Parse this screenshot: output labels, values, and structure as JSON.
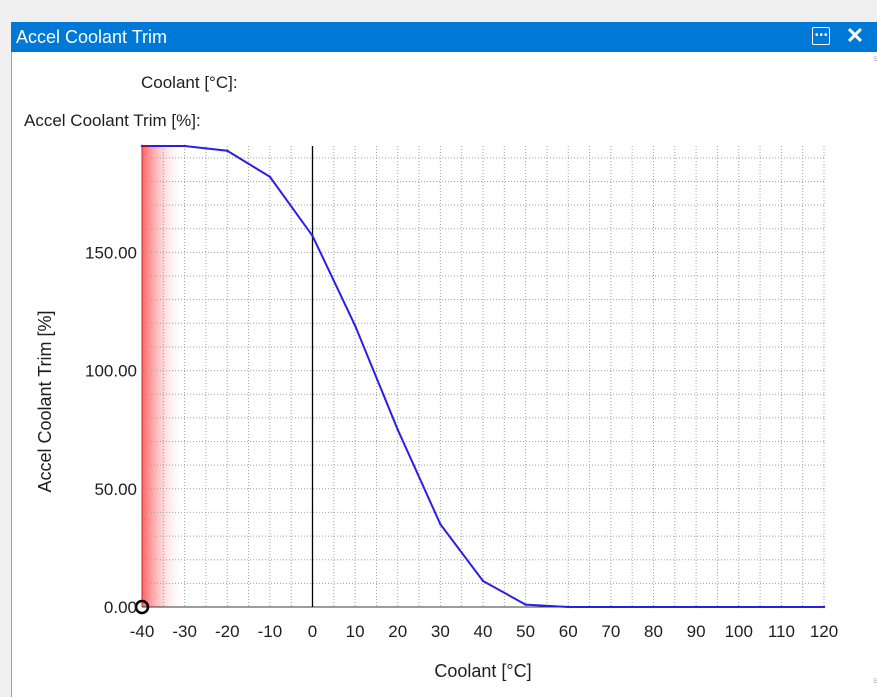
{
  "window": {
    "title": "Accel Coolant Trim"
  },
  "cursor_readout": {
    "x_label": "Coolant [°C]:",
    "y_label": "Accel Coolant Trim [%]:"
  },
  "colors": {
    "titlebar": "#0078d7",
    "curve": "#2b1fe6",
    "highlight": "#ff6b6b",
    "grid": "#a0a0a0"
  },
  "chart_data": {
    "type": "line",
    "xlabel": "Coolant [°C]",
    "ylabel": "Accel Coolant Trim [%]",
    "xlim": [
      -40,
      120
    ],
    "ylim": [
      0,
      195
    ],
    "x_ticks": [
      "-40",
      "-30",
      "-20",
      "-10",
      "0",
      "10",
      "20",
      "30",
      "40",
      "50",
      "60",
      "70",
      "80",
      "90",
      "100",
      "110",
      "120"
    ],
    "y_ticks": [
      {
        "value": 0,
        "label": "0.00"
      },
      {
        "value": 50,
        "label": "50.00"
      },
      {
        "value": 100,
        "label": "100.00"
      },
      {
        "value": 150,
        "label": "150.00"
      }
    ],
    "grid": true,
    "zero_line_x": 0,
    "highlighted_range": [
      -40,
      -30
    ],
    "selected_point": {
      "x": -40,
      "y": 0
    },
    "series": [
      {
        "x": [
          -40,
          -30,
          -20,
          -10,
          0,
          10,
          20,
          30,
          40,
          50,
          60,
          70,
          80,
          90,
          100,
          110,
          120
        ],
        "values": [
          195,
          195,
          193,
          182,
          157,
          119,
          75,
          35,
          11,
          1,
          0,
          0,
          0,
          0,
          0,
          0,
          0
        ]
      }
    ]
  }
}
